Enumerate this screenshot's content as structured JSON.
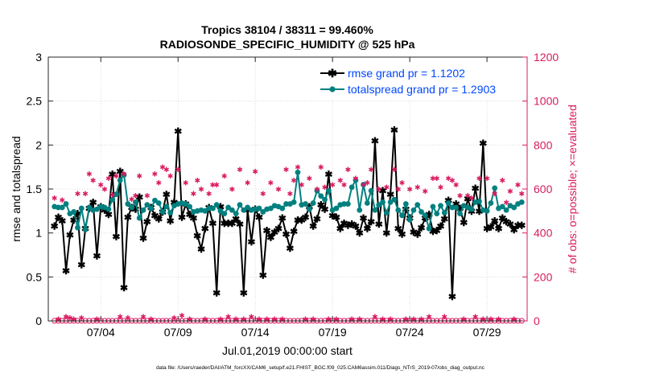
{
  "chart_data": {
    "type": "line",
    "title_line1": "Tropics 38104 / 38311 = 99.460%",
    "title_line2": "RADIOSONDE_SPECIFIC_HUMIDITY @ 525 hPa",
    "xlabel": "Jul.01,2019 00:00:00 start",
    "ylabel_left": "rmse and totalspread",
    "ylabel_right": "# of obs: o=possible; ×=evaluated",
    "footer": "data file: /Users/raeder/DAI/ATM_forcXX/CAM6_setup/f.e21.FHIST_BGC.f09_025.CAM6assim.011/Diags_NTrS_2019-07/obs_diag_output.nc",
    "x_range": [
      0.6,
      31.6
    ],
    "x_ticks": [
      4,
      9,
      14,
      19,
      24,
      29
    ],
    "x_tick_labels": [
      "07/04",
      "07/09",
      "07/14",
      "07/19",
      "07/24",
      "07/29"
    ],
    "y_left_range": [
      0,
      3
    ],
    "y_left_ticks": [
      "0",
      "0.5",
      "1",
      "1.5",
      "2",
      "2.5",
      "3"
    ],
    "y_right_range": [
      0,
      1200
    ],
    "y_right_ticks": [
      "0",
      "200",
      "400",
      "600",
      "800",
      "1000",
      "1200"
    ],
    "colors": {
      "rmse": "#000000",
      "spread": "#00807f",
      "obs": "#d81b60",
      "legend_text": "#0047ff"
    },
    "legend": [
      "rmse grand pr = 1.1202",
      "totalspread grand pr = 1.2903"
    ],
    "x": [
      1.0,
      1.25,
      1.5,
      1.75,
      2.0,
      2.25,
      2.5,
      2.75,
      3.0,
      3.25,
      3.5,
      3.75,
      4.0,
      4.25,
      4.5,
      4.75,
      5.0,
      5.25,
      5.5,
      5.75,
      6.0,
      6.25,
      6.5,
      6.75,
      7.0,
      7.25,
      7.5,
      7.75,
      8.0,
      8.25,
      8.5,
      8.75,
      9.0,
      9.25,
      9.5,
      9.75,
      10.0,
      10.25,
      10.5,
      10.75,
      11.0,
      11.25,
      11.5,
      11.75,
      12.0,
      12.25,
      12.5,
      12.75,
      13.0,
      13.25,
      13.5,
      13.75,
      14.0,
      14.25,
      14.5,
      14.75,
      15.0,
      15.25,
      15.5,
      15.75,
      16.0,
      16.25,
      16.5,
      16.75,
      17.0,
      17.25,
      17.5,
      17.75,
      18.0,
      18.25,
      18.5,
      18.75,
      19.0,
      19.25,
      19.5,
      19.75,
      20.0,
      20.25,
      20.5,
      20.75,
      21.0,
      21.25,
      21.5,
      21.75,
      22.0,
      22.25,
      22.5,
      22.75,
      23.0,
      23.25,
      23.5,
      23.75,
      24.0,
      24.25,
      24.5,
      24.75,
      25.0,
      25.25,
      25.5,
      25.75,
      26.0,
      26.25,
      26.5,
      26.75,
      27.0,
      27.25,
      27.5,
      27.75,
      28.0,
      28.25,
      28.5,
      28.75,
      29.0,
      29.25,
      29.5,
      29.75,
      30.0,
      30.25,
      30.5,
      30.75,
      31.0,
      31.25
    ],
    "series": [
      {
        "name": "rmse",
        "values": [
          1.08,
          1.18,
          1.14,
          0.57,
          0.98,
          1.15,
          1.22,
          0.64,
          1.05,
          1.28,
          1.35,
          0.74,
          1.3,
          1.26,
          1.21,
          1.67,
          0.96,
          1.7,
          0.38,
          1.18,
          1.29,
          1.27,
          1.41,
          0.94,
          1.13,
          1.29,
          1.2,
          1.16,
          1.24,
          1.44,
          1.14,
          1.35,
          2.16,
          1.18,
          1.33,
          1.21,
          1.17,
          0.97,
          0.82,
          1.05,
          1.29,
          1.11,
          0.32,
          1.3,
          1.11,
          1.11,
          1.11,
          1.16,
          1.1,
          0.32,
          1.26,
          0.9,
          1.27,
          1.18,
          0.52,
          1.03,
          0.95,
          1.01,
          1.05,
          1.17,
          0.99,
          0.83,
          1.02,
          1.15,
          1.15,
          1.18,
          1.3,
          1.08,
          1.16,
          1.32,
          1.27,
          1.67,
          1.2,
          1.18,
          1.05,
          1.11,
          1.09,
          1.1,
          1.08,
          1.0,
          1.17,
          1.05,
          1.13,
          2.05,
          1.1,
          1.48,
          1.0,
          1.44,
          2.17,
          1.05,
          0.99,
          1.27,
          1.17,
          1.01,
          0.99,
          1.06,
          1.17,
          1.21,
          1.02,
          1.03,
          1.08,
          1.16,
          1.37,
          0.28,
          1.33,
          1.28,
          1.12,
          1.39,
          1.25,
          1.51,
          1.25,
          2.02,
          1.05,
          1.07,
          1.14,
          1.05,
          1.17,
          1.13,
          1.1,
          1.04,
          1.09,
          1.09
        ],
        "markers": [
          1.08,
          1.18,
          1.14,
          0.57,
          0.98,
          1.15,
          1.22,
          0.64,
          1.05,
          1.28,
          1.35,
          0.74,
          1.3,
          1.26,
          1.21,
          1.67,
          0.96,
          1.7,
          0.38,
          1.18,
          1.29,
          1.27,
          1.41,
          0.94,
          1.13,
          1.29,
          1.2,
          1.16,
          1.24,
          1.44,
          1.14,
          1.35,
          2.16,
          1.18,
          1.33,
          1.21,
          1.17,
          0.97,
          0.82,
          1.05,
          1.29,
          1.11,
          0.32,
          1.3,
          1.11,
          1.11,
          1.11,
          1.16,
          1.1,
          0.32,
          1.26,
          0.9,
          1.27,
          1.18,
          0.52,
          1.03,
          0.95,
          1.01,
          1.05,
          1.17,
          0.99,
          0.83,
          1.02,
          1.15,
          1.15,
          1.18,
          1.3,
          1.08,
          1.16,
          1.32,
          1.27,
          1.67,
          1.2,
          1.18,
          1.05,
          1.11,
          1.09,
          1.1,
          1.08,
          1.0,
          1.17,
          1.05,
          1.13,
          2.05,
          1.1,
          1.48,
          1.0,
          1.44,
          2.17,
          1.05,
          0.99,
          1.27,
          1.17,
          1.01,
          0.99,
          1.06,
          1.17,
          1.21,
          1.02,
          1.03,
          1.08,
          1.16,
          1.37,
          0.28,
          1.33,
          1.28,
          1.12,
          1.39,
          1.25,
          1.51,
          1.25,
          2.02,
          1.05,
          1.07,
          1.14,
          1.05,
          1.17,
          1.13,
          1.1,
          1.04,
          1.09,
          1.09
        ]
      },
      {
        "name": "totalspread",
        "values": [
          1.3,
          1.29,
          1.29,
          1.33,
          1.22,
          1.24,
          1.06,
          1.28,
          1.04,
          1.29,
          1.26,
          1.27,
          1.3,
          1.29,
          1.27,
          1.38,
          1.44,
          1.6,
          1.66,
          1.33,
          1.29,
          1.35,
          1.17,
          1.26,
          1.32,
          1.28,
          1.37,
          1.34,
          1.24,
          1.3,
          1.23,
          1.31,
          1.33,
          1.34,
          1.33,
          1.3,
          1.24,
          1.25,
          1.26,
          1.25,
          1.28,
          1.28,
          1.32,
          1.25,
          1.22,
          1.29,
          1.26,
          1.22,
          1.32,
          1.26,
          1.29,
          1.26,
          1.27,
          1.28,
          1.24,
          1.27,
          1.28,
          1.31,
          1.3,
          1.28,
          1.33,
          1.33,
          1.35,
          1.69,
          1.32,
          1.33,
          1.27,
          1.34,
          1.48,
          1.42,
          1.38,
          1.48,
          1.26,
          1.28,
          1.32,
          1.33,
          1.33,
          1.52,
          1.6,
          1.26,
          1.55,
          1.34,
          1.48,
          1.26,
          1.32,
          1.35,
          1.23,
          1.35,
          1.38,
          1.26,
          1.2,
          1.33,
          1.15,
          1.26,
          1.32,
          1.24,
          1.2,
          1.05,
          1.3,
          1.22,
          1.31,
          1.23,
          1.34,
          1.29,
          1.29,
          1.22,
          1.31,
          1.29,
          1.27,
          1.35,
          1.36,
          1.26,
          1.25,
          1.34,
          1.51,
          1.28,
          1.3,
          1.26,
          1.31,
          1.29,
          1.33,
          1.35
        ],
        "markers": [
          1.3,
          1.29,
          1.29,
          1.33,
          1.22,
          1.24,
          1.06,
          1.28,
          1.04,
          1.29,
          1.26,
          1.27,
          1.3,
          1.29,
          1.27,
          1.38,
          1.44,
          1.6,
          1.66,
          1.33,
          1.29,
          1.35,
          1.17,
          1.26,
          1.32,
          1.28,
          1.37,
          1.34,
          1.24,
          1.3,
          1.23,
          1.31,
          1.33,
          1.34,
          1.33,
          1.3,
          1.24,
          1.25,
          1.26,
          1.25,
          1.28,
          1.28,
          1.32,
          1.25,
          1.22,
          1.29,
          1.26,
          1.22,
          1.32,
          1.26,
          1.29,
          1.26,
          1.27,
          1.28,
          1.24,
          1.27,
          1.28,
          1.31,
          1.3,
          1.28,
          1.33,
          1.33,
          1.35,
          1.69,
          1.32,
          1.33,
          1.27,
          1.34,
          1.48,
          1.42,
          1.38,
          1.48,
          1.26,
          1.28,
          1.32,
          1.33,
          1.33,
          1.52,
          1.6,
          1.26,
          1.55,
          1.34,
          1.48,
          1.26,
          1.32,
          1.35,
          1.23,
          1.35,
          1.38,
          1.26,
          1.2,
          1.33,
          1.15,
          1.26,
          1.32,
          1.24,
          1.2,
          1.05,
          1.3,
          1.22,
          1.31,
          1.23,
          1.34,
          1.29,
          1.29,
          1.22,
          1.31,
          1.29,
          1.27,
          1.35,
          1.36,
          1.26,
          1.25,
          1.34,
          1.51,
          1.28,
          1.3,
          1.26,
          1.31,
          1.29,
          1.33,
          1.35
        ]
      },
      {
        "name": "obs_possible",
        "axis": "right",
        "values": [
          0.5,
          0.5,
          0.5,
          0.5,
          0.5,
          0.5,
          0.5,
          0.5,
          0.5,
          0.5,
          0.5,
          0.5,
          0.5,
          0.5,
          0.5,
          0.5,
          0.5,
          0.5,
          0.5,
          0.5,
          0.5,
          0.5,
          0.5,
          0.5,
          0.5,
          0.5,
          0.5,
          0.5,
          0.5,
          0.5,
          0.5,
          0.5,
          0.5,
          0.5,
          0.5,
          0.5,
          0.5,
          0.5,
          0.5,
          0.5,
          0.5,
          0.5,
          0.5,
          0.5,
          0.5,
          0.5,
          0.5,
          0.5,
          0.5,
          0.5,
          0.5,
          0.5,
          0.5,
          0.5,
          0.5,
          0.5,
          0.5,
          0.5,
          0.5,
          0.5,
          0.5,
          0.5,
          0.5,
          0.5,
          0.5,
          0.5,
          0.5,
          0.5,
          0.5,
          0.5,
          0.5,
          0.5,
          0.5,
          0.5,
          0.5,
          0.5,
          0.5,
          0.5,
          0.5,
          0.5,
          0.5,
          0.5,
          0.5,
          0.5,
          0.5,
          0.5,
          0.5,
          0.5,
          0.5,
          0.5,
          0.5,
          0.5,
          0.5,
          0.5,
          0.5,
          0.5,
          0.5,
          0.5,
          0.5,
          0.5,
          0.5,
          0.5,
          0.5,
          0.5,
          0.5,
          0.5,
          0.5,
          0.5,
          0.5,
          0.5,
          0.5,
          0.5,
          0.5,
          0.5,
          0.5,
          0.5,
          0.5,
          0.5,
          0.5,
          0.5,
          0.5,
          0.5
        ]
      },
      {
        "name": "obs_evaluated",
        "axis": "right",
        "values": [
          560,
          10,
          550,
          20,
          15,
          10,
          580,
          15,
          580,
          670,
          640,
          10,
          620,
          600,
          650,
          575,
          660,
          20,
          670,
          15,
          555,
          570,
          660,
          20,
          570,
          10,
          670,
          630,
          700,
          690,
          660,
          15,
          690,
          25,
          630,
          10,
          580,
          640,
          600,
          10,
          580,
          620,
          620,
          10,
          660,
          20,
          600,
          10,
          690,
          10,
          630,
          20,
          680,
          10,
          580,
          10,
          630,
          10,
          600,
          10,
          690,
          580,
          640,
          700,
          620,
          10,
          650,
          10,
          600,
          700,
          610,
          10,
          620,
          10,
          640,
          620,
          690,
          10,
          650,
          10,
          620,
          630,
          690,
          20,
          600,
          10,
          610,
          10,
          690,
          600,
          630,
          10,
          600,
          10,
          610,
          10,
          590,
          20,
          650,
          650,
          610,
          20,
          650,
          640,
          620,
          570,
          10,
          570,
          560,
          20,
          650,
          10,
          650,
          10,
          580,
          10,
          640,
          540,
          590,
          10,
          620,
          580
        ]
      }
    ]
  }
}
